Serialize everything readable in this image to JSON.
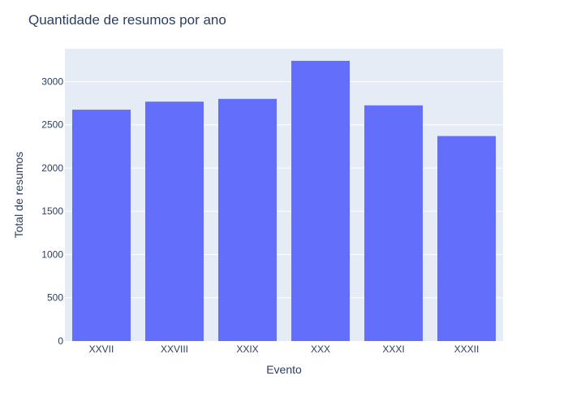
{
  "chart_data": {
    "type": "bar",
    "title": "Quantidade de resumos por ano",
    "xlabel": "Evento",
    "ylabel": "Total de resumos",
    "categories": [
      "XXVII",
      "XXVIII",
      "XXIX",
      "XXX",
      "XXXI",
      "XXXII"
    ],
    "values": [
      2675,
      2768,
      2800,
      3240,
      2725,
      2370
    ],
    "ylim": [
      0,
      3380
    ],
    "yticks": [
      0,
      500,
      1000,
      1500,
      2000,
      2500,
      3000
    ],
    "grid": true,
    "colors": {
      "bar": "#636efa",
      "plot_bg": "#e5ecf6",
      "grid": "#ffffff",
      "text": "#2a3f5f"
    }
  }
}
